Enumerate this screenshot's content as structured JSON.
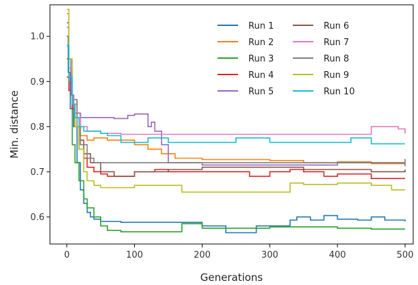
{
  "chart_data": {
    "type": "line",
    "xlabel": "Generations",
    "ylabel": "Min. distance",
    "xlim": [
      -25,
      512
    ],
    "ylim": [
      0.54,
      1.07
    ],
    "xticks": [
      0,
      100,
      200,
      300,
      400,
      500
    ],
    "yticks": [
      0.6,
      0.7,
      0.8,
      0.9,
      1.0
    ],
    "ytick_labels": [
      "0.6",
      "0.7",
      "0.8",
      "0.9",
      "1.0"
    ],
    "grid": false,
    "legend": {
      "placement": "top-right",
      "columns": 2
    },
    "series": [
      {
        "name": "Run 1",
        "color": "#1f77b4",
        "x": [
          0,
          2,
          5,
          10,
          15,
          20,
          25,
          30,
          35,
          40,
          50,
          60,
          80,
          100,
          150,
          200,
          235,
          260,
          280,
          300,
          330,
          340,
          360,
          380,
          400,
          430,
          450,
          470,
          500
        ],
        "y": [
          1.0,
          0.92,
          0.84,
          0.8,
          0.72,
          0.66,
          0.63,
          0.61,
          0.6,
          0.595,
          0.59,
          0.59,
          0.588,
          0.588,
          0.588,
          0.58,
          0.565,
          0.565,
          0.58,
          0.58,
          0.593,
          0.6,
          0.593,
          0.603,
          0.595,
          0.593,
          0.6,
          0.593,
          0.59
        ]
      },
      {
        "name": "Run 2",
        "color": "#ff7f0e",
        "x": [
          0,
          3,
          6,
          10,
          15,
          20,
          30,
          40,
          60,
          80,
          100,
          120,
          140,
          160,
          200,
          300,
          350,
          400,
          450,
          500
        ],
        "y": [
          1.05,
          0.95,
          0.87,
          0.85,
          0.83,
          0.78,
          0.77,
          0.775,
          0.77,
          0.77,
          0.76,
          0.75,
          0.74,
          0.73,
          0.727,
          0.725,
          0.72,
          0.722,
          0.718,
          0.72
        ]
      },
      {
        "name": "Run 3",
        "color": "#2ca02c",
        "x": [
          0,
          3,
          8,
          12,
          18,
          25,
          30,
          40,
          50,
          60,
          80,
          100,
          150,
          170,
          180,
          200,
          250,
          300,
          340,
          400,
          450,
          500
        ],
        "y": [
          1.03,
          0.88,
          0.76,
          0.72,
          0.68,
          0.64,
          0.62,
          0.6,
          0.58,
          0.57,
          0.567,
          0.567,
          0.567,
          0.585,
          0.585,
          0.575,
          0.575,
          0.578,
          0.578,
          0.575,
          0.573,
          0.573
        ]
      },
      {
        "name": "Run 4",
        "color": "#d62728",
        "x": [
          0,
          3,
          8,
          12,
          18,
          25,
          30,
          40,
          50,
          60,
          80,
          100,
          130,
          150,
          200,
          250,
          270,
          300,
          330,
          350,
          380,
          400,
          450,
          470,
          500
        ],
        "y": [
          0.91,
          0.88,
          0.84,
          0.8,
          0.75,
          0.73,
          0.71,
          0.7,
          0.695,
          0.69,
          0.69,
          0.7,
          0.705,
          0.7,
          0.7,
          0.7,
          0.69,
          0.7,
          0.705,
          0.7,
          0.69,
          0.695,
          0.685,
          0.685,
          0.685
        ]
      },
      {
        "name": "Run 5",
        "color": "#9467bd",
        "x": [
          0,
          3,
          6,
          10,
          20,
          30,
          50,
          70,
          90,
          100,
          120,
          125,
          130,
          140,
          150,
          200,
          300,
          350,
          400,
          450,
          480,
          500
        ],
        "y": [
          1.02,
          0.95,
          0.87,
          0.83,
          0.82,
          0.82,
          0.82,
          0.818,
          0.825,
          0.828,
          0.8,
          0.81,
          0.79,
          0.76,
          0.72,
          0.715,
          0.715,
          0.715,
          0.72,
          0.72,
          0.72,
          0.728
        ]
      },
      {
        "name": "Run 6",
        "color": "#8c564b",
        "x": [
          0,
          3,
          8,
          12,
          18,
          25,
          35,
          50,
          70,
          100,
          150,
          200,
          250,
          300,
          350,
          400,
          450,
          500
        ],
        "y": [
          0.95,
          0.9,
          0.85,
          0.8,
          0.77,
          0.74,
          0.72,
          0.7,
          0.69,
          0.7,
          0.705,
          0.71,
          0.71,
          0.71,
          0.705,
          0.705,
          0.7,
          0.705
        ]
      },
      {
        "name": "Run 7",
        "color": "#e377c2",
        "x": [
          0,
          3,
          8,
          15,
          20,
          30,
          50,
          80,
          100,
          150,
          200,
          300,
          400,
          430,
          450,
          480,
          490,
          500
        ],
        "y": [
          1.02,
          0.93,
          0.86,
          0.82,
          0.8,
          0.79,
          0.785,
          0.783,
          0.783,
          0.783,
          0.783,
          0.783,
          0.783,
          0.783,
          0.8,
          0.8,
          0.795,
          0.785
        ]
      },
      {
        "name": "Run 8",
        "color": "#7f7f7f",
        "x": [
          0,
          3,
          8,
          15,
          20,
          30,
          40,
          50,
          80,
          100,
          150,
          200,
          250,
          300,
          350,
          400,
          450,
          500
        ],
        "y": [
          0.98,
          0.9,
          0.86,
          0.8,
          0.76,
          0.73,
          0.72,
          0.72,
          0.72,
          0.72,
          0.72,
          0.72,
          0.72,
          0.72,
          0.72,
          0.72,
          0.72,
          0.712
        ]
      },
      {
        "name": "Run 9",
        "color": "#bcbd22",
        "x": [
          0,
          3,
          8,
          12,
          18,
          25,
          30,
          40,
          50,
          60,
          80,
          100,
          150,
          170,
          200,
          250,
          300,
          320,
          330,
          350,
          400,
          450,
          480,
          500
        ],
        "y": [
          1.06,
          0.95,
          0.85,
          0.8,
          0.75,
          0.7,
          0.68,
          0.67,
          0.665,
          0.665,
          0.665,
          0.67,
          0.67,
          0.655,
          0.655,
          0.655,
          0.655,
          0.655,
          0.675,
          0.672,
          0.675,
          0.67,
          0.66,
          0.66
        ]
      },
      {
        "name": "Run 10",
        "color": "#17becf",
        "x": [
          0,
          3,
          8,
          12,
          18,
          25,
          35,
          50,
          60,
          80,
          100,
          120,
          150,
          200,
          250,
          300,
          350,
          400,
          420,
          450,
          500
        ],
        "y": [
          0.98,
          0.91,
          0.85,
          0.82,
          0.8,
          0.79,
          0.79,
          0.785,
          0.78,
          0.765,
          0.765,
          0.775,
          0.765,
          0.765,
          0.775,
          0.765,
          0.765,
          0.765,
          0.775,
          0.762,
          0.762
        ]
      }
    ]
  }
}
